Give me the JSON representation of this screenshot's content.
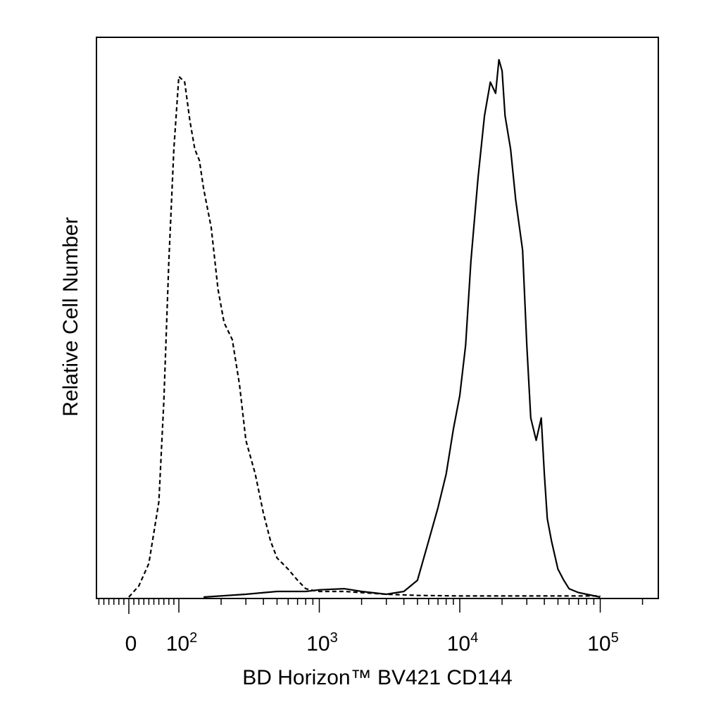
{
  "chart_data": {
    "type": "line",
    "ylabel": "Relative Cell Number",
    "xlabel": "BD Horizon™ BV421 CD144",
    "x_scale": "biexponential (linear near 0, log10 above ~10^2)",
    "xlim": [
      -150,
      250000
    ],
    "ylim": [
      0,
      1.0
    ],
    "grid": false,
    "legend": "none",
    "x_ticks": [
      {
        "value": 0,
        "label": "0"
      },
      {
        "value": 100,
        "label": "10",
        "exp": "2"
      },
      {
        "value": 1000,
        "label": "10",
        "exp": "3"
      },
      {
        "value": 10000,
        "label": "10",
        "exp": "4"
      },
      {
        "value": 100000,
        "label": "10",
        "exp": "5"
      }
    ],
    "series": [
      {
        "style": "dashed",
        "color": "#000000",
        "x": [
          0,
          20,
          40,
          60,
          70,
          80,
          90,
          100,
          110,
          120,
          130,
          140,
          150,
          170,
          190,
          210,
          240,
          270,
          300,
          350,
          400,
          450,
          500,
          600,
          700,
          800,
          900,
          1000,
          1500,
          2000,
          3000,
          5000,
          10000,
          20000,
          50000,
          100000
        ],
        "y": [
          0.0,
          0.02,
          0.06,
          0.17,
          0.35,
          0.6,
          0.8,
          0.93,
          0.92,
          0.85,
          0.8,
          0.78,
          0.73,
          0.66,
          0.55,
          0.49,
          0.46,
          0.38,
          0.28,
          0.22,
          0.15,
          0.1,
          0.07,
          0.05,
          0.03,
          0.015,
          0.012,
          0.01,
          0.01,
          0.008,
          0.005,
          0.003,
          0.002,
          0.002,
          0.002,
          0.002
        ]
      },
      {
        "style": "solid",
        "color": "#000000",
        "x": [
          150,
          300,
          500,
          800,
          1000,
          1500,
          2000,
          3000,
          4000,
          5000,
          6000,
          7000,
          8000,
          9000,
          10000,
          11000,
          12000,
          13500,
          15000,
          16500,
          18000,
          19000,
          20000,
          21000,
          23000,
          25000,
          28000,
          30000,
          32000,
          35000,
          38000,
          40000,
          42000,
          45000,
          50000,
          55000,
          60000,
          70000,
          80000,
          100000
        ],
        "y": [
          0.0,
          0.005,
          0.01,
          0.01,
          0.013,
          0.015,
          0.01,
          0.005,
          0.01,
          0.03,
          0.1,
          0.16,
          0.22,
          0.3,
          0.36,
          0.45,
          0.6,
          0.75,
          0.86,
          0.92,
          0.9,
          0.96,
          0.94,
          0.86,
          0.8,
          0.71,
          0.62,
          0.45,
          0.32,
          0.28,
          0.32,
          0.22,
          0.14,
          0.1,
          0.05,
          0.03,
          0.015,
          0.008,
          0.005,
          0.0
        ]
      }
    ]
  }
}
